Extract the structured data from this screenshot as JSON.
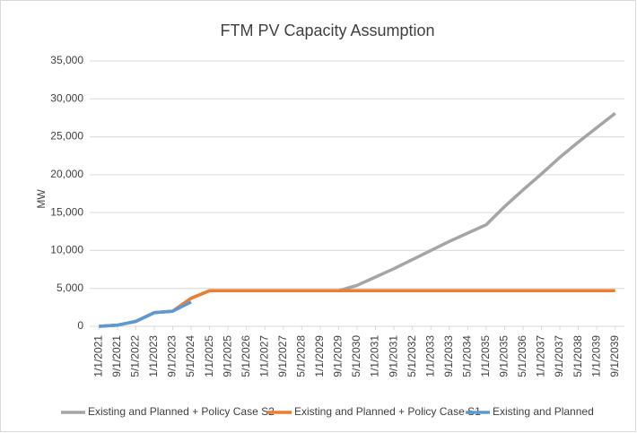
{
  "chart_data": {
    "type": "line",
    "title": "FTM PV Capacity Assumption",
    "y_label": "MW",
    "categories": [
      "1/1/2021",
      "9/1/2021",
      "5/1/2022",
      "1/1/2023",
      "9/1/2023",
      "5/1/2024",
      "1/1/2025",
      "9/1/2025",
      "5/1/2026",
      "1/1/2027",
      "9/1/2027",
      "5/1/2028",
      "1/1/2029",
      "9/1/2029",
      "5/1/2030",
      "1/1/2031",
      "9/1/2031",
      "5/1/2032",
      "1/1/2033",
      "9/1/2033",
      "5/1/2034",
      "1/1/2035",
      "9/1/2035",
      "5/1/2036",
      "1/1/2037",
      "9/1/2037",
      "5/1/2038",
      "1/1/2039",
      "9/1/2039"
    ],
    "series": [
      {
        "name": "Existing and Planned + Policy Case S2",
        "color": "#a5a5a5",
        "values": [
          0,
          150,
          650,
          1800,
          2000,
          3700,
          4700,
          4700,
          4700,
          4700,
          4700,
          4700,
          4700,
          4700,
          5400,
          6500,
          7600,
          8800,
          10000,
          11200,
          12300,
          13400,
          15800,
          18000,
          20100,
          22300,
          24300,
          26200,
          28100
        ]
      },
      {
        "name": "Existing and Planned + Policy Case S1",
        "color": "#ed7d31",
        "values": [
          0,
          150,
          650,
          1800,
          2000,
          3700,
          4700,
          4700,
          4700,
          4700,
          4700,
          4700,
          4700,
          4700,
          4700,
          4700,
          4700,
          4700,
          4700,
          4700,
          4700,
          4700,
          4700,
          4700,
          4700,
          4700,
          4700,
          4700,
          4700
        ]
      },
      {
        "name": "Existing and Planned",
        "color": "#5b9bd5",
        "values": [
          0,
          150,
          650,
          1800,
          2000,
          3200,
          null,
          null,
          null,
          null,
          null,
          null,
          null,
          null,
          null,
          null,
          null,
          null,
          null,
          null,
          null,
          null,
          null,
          null,
          null,
          null,
          null,
          null,
          null
        ]
      }
    ],
    "ylim": [
      0,
      35000
    ],
    "yticks": [
      0,
      {
        "value": 5000,
        "label": "5,000"
      },
      {
        "value": 10000,
        "label": "10,000"
      },
      {
        "value": 15000,
        "label": "15,000"
      },
      {
        "value": 20000,
        "label": "20,000"
      },
      {
        "value": 25000,
        "label": "25,000"
      },
      {
        "value": 30000,
        "label": "30,000"
      },
      {
        "value": 35000,
        "label": "35,000"
      }
    ],
    "grid": true,
    "legend": "bottom"
  }
}
